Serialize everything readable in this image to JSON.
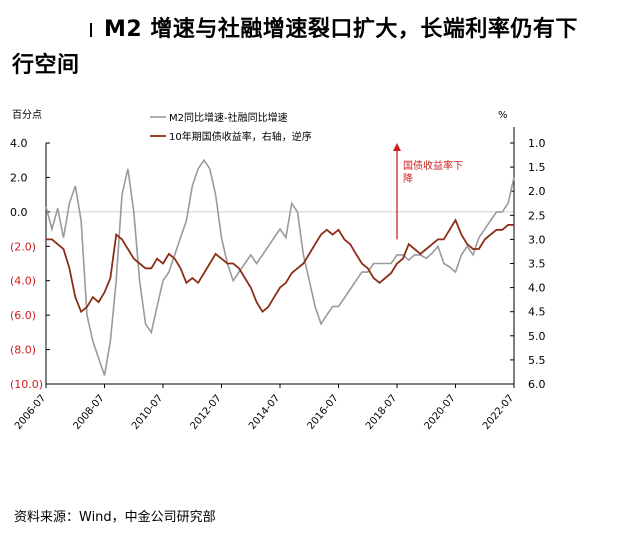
{
  "title_line1": "M2 增速与社融增速裂口扩大，长端利率仍有下",
  "title_line2": "行空间",
  "source": "资料来源：Wind，中金公司研究部",
  "colors": {
    "gray": "#9a9a9a",
    "brown": "#8b2e16",
    "red": "#cc1f1f",
    "axis": "#000000"
  },
  "chart_data": {
    "type": "line",
    "y_left_label": "百分点",
    "y_right_label": "%",
    "y_left_range": [
      -10,
      4
    ],
    "y_left_ticks": [
      "4.0",
      "2.0",
      "0.0",
      "(2.0)",
      "(4.0)",
      "(6.0)",
      "(8.0)",
      "(10.0)"
    ],
    "y_left_tick_values": [
      4,
      2,
      0,
      -2,
      -4,
      -6,
      -8,
      -10
    ],
    "y_right_range": [
      1.0,
      6.0
    ],
    "y_right_inverted": true,
    "y_right_ticks": [
      "1.0",
      "1.5",
      "2.0",
      "2.5",
      "3.0",
      "3.5",
      "4.0",
      "4.5",
      "5.0",
      "5.5",
      "6.0"
    ],
    "y_right_tick_values": [
      1.0,
      1.5,
      2.0,
      2.5,
      3.0,
      3.5,
      4.0,
      4.5,
      5.0,
      5.5,
      6.0
    ],
    "x_range": [
      2006.5,
      2022.5
    ],
    "x_ticks": [
      "2006-07",
      "2008-07",
      "2010-07",
      "2012-07",
      "2014-07",
      "2016-07",
      "2018-07",
      "2020-07",
      "2022-07"
    ],
    "x_tick_values": [
      2006.5,
      2008.5,
      2010.5,
      2012.5,
      2014.5,
      2016.5,
      2018.5,
      2020.5,
      2022.5
    ],
    "annotation": {
      "text_line1": "国债收益率下",
      "text_line2": "降",
      "x": 2018.5,
      "y_right_from": 3.0,
      "y_right_to": 1.0
    },
    "series": [
      {
        "name": "M2同比增速-社融同比增速",
        "axis": "left",
        "x": [
          2006.5,
          2006.7,
          2006.9,
          2007.1,
          2007.3,
          2007.5,
          2007.7,
          2007.9,
          2008.1,
          2008.3,
          2008.5,
          2008.7,
          2008.9,
          2009.1,
          2009.3,
          2009.5,
          2009.7,
          2009.9,
          2010.1,
          2010.3,
          2010.5,
          2010.7,
          2010.9,
          2011.1,
          2011.3,
          2011.5,
          2011.7,
          2011.9,
          2012.1,
          2012.3,
          2012.5,
          2012.7,
          2012.9,
          2013.1,
          2013.3,
          2013.5,
          2013.7,
          2013.9,
          2014.1,
          2014.3,
          2014.5,
          2014.7,
          2014.9,
          2015.1,
          2015.3,
          2015.5,
          2015.7,
          2015.9,
          2016.1,
          2016.3,
          2016.5,
          2016.7,
          2016.9,
          2017.1,
          2017.3,
          2017.5,
          2017.7,
          2017.9,
          2018.1,
          2018.3,
          2018.5,
          2018.7,
          2018.9,
          2019.1,
          2019.3,
          2019.5,
          2019.7,
          2019.9,
          2020.1,
          2020.3,
          2020.5,
          2020.7,
          2020.9,
          2021.1,
          2021.3,
          2021.5,
          2021.7,
          2021.9,
          2022.1,
          2022.3,
          2022.5
        ],
        "y": [
          0.3,
          -1.0,
          0.2,
          -1.5,
          0.5,
          1.5,
          -0.5,
          -6.0,
          -7.5,
          -8.5,
          -9.5,
          -7.5,
          -4.0,
          1.0,
          2.5,
          0.0,
          -4.0,
          -6.5,
          -7.0,
          -5.5,
          -4.0,
          -3.5,
          -2.5,
          -1.5,
          -0.5,
          1.5,
          2.5,
          3.0,
          2.5,
          1.0,
          -1.5,
          -3.0,
          -4.0,
          -3.5,
          -3.0,
          -2.5,
          -3.0,
          -2.5,
          -2.0,
          -1.5,
          -1.0,
          -1.5,
          0.5,
          0.0,
          -2.5,
          -4.0,
          -5.5,
          -6.5,
          -6.0,
          -5.5,
          -5.5,
          -5.0,
          -4.5,
          -4.0,
          -3.5,
          -3.5,
          -3.0,
          -3.0,
          -3.0,
          -3.0,
          -2.5,
          -2.5,
          -2.8,
          -2.5,
          -2.5,
          -2.7,
          -2.4,
          -2.0,
          -3.0,
          -3.2,
          -3.5,
          -2.5,
          -2.0,
          -2.5,
          -1.5,
          -1.0,
          -0.5,
          0.0,
          0.0,
          0.5,
          2.0
        ]
      },
      {
        "name": "10年期国债收益率，右轴，逆序",
        "axis": "right",
        "x": [
          2006.5,
          2006.7,
          2006.9,
          2007.1,
          2007.3,
          2007.5,
          2007.7,
          2007.9,
          2008.1,
          2008.3,
          2008.5,
          2008.7,
          2008.9,
          2009.1,
          2009.3,
          2009.5,
          2009.7,
          2009.9,
          2010.1,
          2010.3,
          2010.5,
          2010.7,
          2010.9,
          2011.1,
          2011.3,
          2011.5,
          2011.7,
          2011.9,
          2012.1,
          2012.3,
          2012.5,
          2012.7,
          2012.9,
          2013.1,
          2013.3,
          2013.5,
          2013.7,
          2013.9,
          2014.1,
          2014.3,
          2014.5,
          2014.7,
          2014.9,
          2015.1,
          2015.3,
          2015.5,
          2015.7,
          2015.9,
          2016.1,
          2016.3,
          2016.5,
          2016.7,
          2016.9,
          2017.1,
          2017.3,
          2017.5,
          2017.7,
          2017.9,
          2018.1,
          2018.3,
          2018.5,
          2018.7,
          2018.9,
          2019.1,
          2019.3,
          2019.5,
          2019.7,
          2019.9,
          2020.1,
          2020.3,
          2020.5,
          2020.7,
          2020.9,
          2021.1,
          2021.3,
          2021.5,
          2021.7,
          2021.9,
          2022.1,
          2022.3,
          2022.5
        ],
        "y": [
          3.0,
          3.0,
          3.1,
          3.2,
          3.6,
          4.2,
          4.5,
          4.4,
          4.2,
          4.3,
          4.1,
          3.8,
          2.9,
          3.0,
          3.2,
          3.4,
          3.5,
          3.6,
          3.6,
          3.4,
          3.5,
          3.3,
          3.4,
          3.6,
          3.9,
          3.8,
          3.9,
          3.7,
          3.5,
          3.3,
          3.4,
          3.5,
          3.5,
          3.6,
          3.8,
          4.0,
          4.3,
          4.5,
          4.4,
          4.2,
          4.0,
          3.9,
          3.7,
          3.6,
          3.5,
          3.3,
          3.1,
          2.9,
          2.8,
          2.9,
          2.8,
          3.0,
          3.1,
          3.3,
          3.5,
          3.6,
          3.8,
          3.9,
          3.8,
          3.7,
          3.5,
          3.4,
          3.1,
          3.2,
          3.3,
          3.2,
          3.1,
          3.0,
          3.0,
          2.8,
          2.6,
          2.9,
          3.1,
          3.2,
          3.2,
          3.0,
          2.9,
          2.8,
          2.8,
          2.7,
          2.7
        ]
      }
    ]
  }
}
